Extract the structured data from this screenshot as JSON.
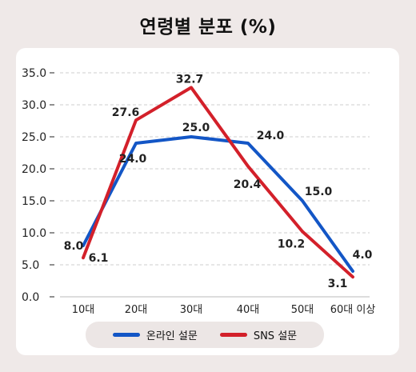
{
  "title": "연령별 분포 (%)",
  "colors": {
    "online": "#1356c6",
    "sns": "#d3202a",
    "background": "#efe9e8",
    "card": "#ffffff"
  },
  "chart_data": {
    "type": "line",
    "title": "연령별 분포 (%)",
    "categories": [
      "10대",
      "20대",
      "30대",
      "40대",
      "50대",
      "60대 이상"
    ],
    "y_ticks": [
      "0.0",
      "5.0",
      "10.0",
      "15.0",
      "20.0",
      "25.0",
      "30.0",
      "35.0"
    ],
    "ylim": [
      0,
      35
    ],
    "grid": "horizontal dashed",
    "legend_position": "bottom",
    "series": [
      {
        "name": "온라인 설문",
        "color": "#1356c6",
        "values": [
          8.0,
          24.0,
          25.0,
          24.0,
          15.0,
          4.0
        ],
        "labels": [
          "8.0",
          "24.0",
          "25.0",
          "24.0",
          "15.0",
          "4.0"
        ]
      },
      {
        "name": "SNS 설문",
        "color": "#d3202a",
        "values": [
          6.1,
          27.6,
          32.7,
          20.4,
          10.2,
          3.1
        ],
        "labels": [
          "6.1",
          "27.6",
          "32.7",
          "20.4",
          "10.2",
          "3.1"
        ]
      }
    ]
  }
}
